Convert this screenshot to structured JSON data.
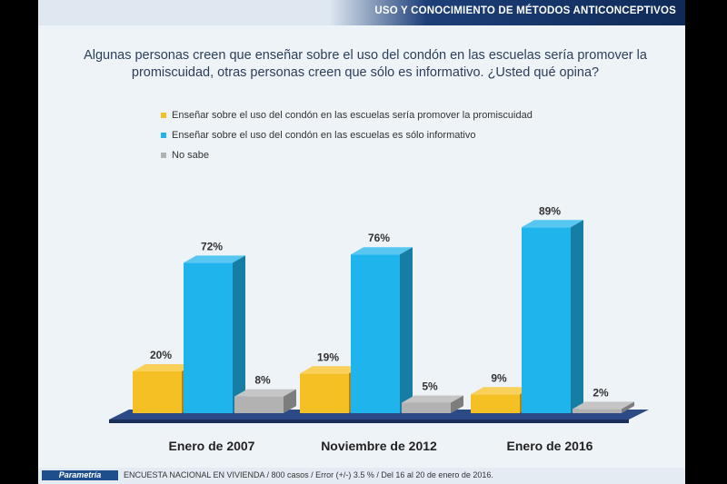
{
  "header": {
    "title": "USO  Y CONOCIMIENTO DE MÉTODOS ANTICONCEPTIVOS"
  },
  "question": "Algunas personas creen que enseñar sobre el uso del condón en las escuelas sería promover la promiscuidad, otras personas creen que sólo es informativo. ¿Usted qué opina?",
  "footer": {
    "logo": "Parametría",
    "text": "ENCUESTA NACIONAL EN VIVIENDA / 800 casos / Error (+/-) 3.5 % / Del 16 al 20 de enero de 2016."
  },
  "chart_data": {
    "type": "bar",
    "categories": [
      "Enero de 2007",
      "Noviembre de 2012",
      "Enero de 2016"
    ],
    "series": [
      {
        "name": "Enseñar sobre el uso del condón en las escuelas sería promover la promiscuidad",
        "values": [
          20,
          19,
          9
        ],
        "color": "#f5c023"
      },
      {
        "name": "Enseñar sobre el uso del condón en las escuelas es sólo informativo",
        "values": [
          72,
          76,
          89
        ],
        "color": "#1fb4ec"
      },
      {
        "name": "No sabe",
        "values": [
          8,
          5,
          2
        ],
        "color": "#b2b2b2"
      }
    ],
    "value_suffix": "%",
    "ylim": [
      0,
      100
    ],
    "grid": false,
    "legend_position": "top-left"
  }
}
